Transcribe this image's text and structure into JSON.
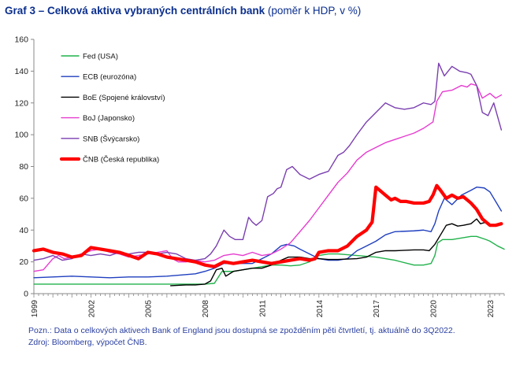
{
  "header": {
    "title_main": "Graf 3 – Celková aktiva vybraných centrálních bank",
    "title_units": "(poměr k HDP, v %)"
  },
  "footnotes": {
    "note": "Pozn.: Data o celkových aktivech Bank of England jsou dostupná se zpožděním pěti čtvrtletí, tj. aktuálně do 3Q2022.",
    "source": "Zdroj:  Bloomberg, výpočet ČNB."
  },
  "chart_data": {
    "type": "line",
    "title": "Graf 3 – Celková aktiva vybraných centrálních bank (poměr k HDP, v %)",
    "xlabel": "",
    "ylabel": "",
    "xlim": [
      1999,
      2023.75
    ],
    "ylim": [
      0,
      160
    ],
    "y_ticks": [
      0,
      20,
      40,
      60,
      80,
      100,
      120,
      140,
      160
    ],
    "x_ticks": [
      1999,
      2002,
      2005,
      2008,
      2011,
      2014,
      2017,
      2020,
      2023
    ],
    "x_tick_labels": [
      "1999",
      "2002",
      "2005",
      "2008",
      "2011",
      "2014",
      "2017",
      "2020",
      "2023"
    ],
    "grid": false,
    "legend_position": "top-left",
    "series": [
      {
        "name": "Fed (USA)",
        "color": "#21b24b",
        "width": 1.4,
        "x": [
          1999,
          2000,
          2001,
          2002,
          2003,
          2004,
          2005,
          2006,
          2007,
          2008,
          2008.5,
          2008.9,
          2009.5,
          2010,
          2010.5,
          2011,
          2011.5,
          2012,
          2012.5,
          2013,
          2013.5,
          2014,
          2014.5,
          2015,
          2016,
          2017,
          2018,
          2019,
          2019.5,
          2019.9,
          2020.1,
          2020.25,
          2020.5,
          2021,
          2021.5,
          2022,
          2022.3,
          2022.8,
          2023,
          2023.4,
          2023.75
        ],
        "y": [
          6,
          6,
          6,
          6,
          6,
          6,
          6,
          6,
          6,
          6,
          6.5,
          14,
          14,
          15,
          16,
          17,
          18,
          18,
          17.5,
          18,
          20,
          24,
          25,
          25,
          24,
          23,
          21,
          18,
          18,
          19,
          24,
          32,
          34,
          34,
          35,
          36,
          36,
          34,
          33,
          30,
          28
        ]
      },
      {
        "name": "ECB (eurozóna)",
        "color": "#1f3fbf",
        "width": 1.4,
        "x": [
          1999,
          2000,
          2001,
          2002,
          2003,
          2004,
          2005,
          2006,
          2007,
          2007.5,
          2008,
          2008.5,
          2009,
          2010,
          2010.5,
          2011,
          2011.5,
          2012,
          2012.3,
          2012.7,
          2013,
          2013.5,
          2014,
          2014.5,
          2015,
          2015.5,
          2016,
          2016.5,
          2017,
          2017.5,
          2018,
          2019,
          2019.5,
          2019.9,
          2020.1,
          2020.3,
          2020.6,
          2021,
          2021.5,
          2022,
          2022.3,
          2022.7,
          2023,
          2023.3,
          2023.6
        ],
        "y": [
          10,
          10.5,
          11,
          10.5,
          10,
          10.5,
          10.5,
          11,
          12,
          12.5,
          14,
          16,
          19,
          19,
          19,
          22,
          25,
          30,
          31,
          30,
          28,
          25,
          22,
          21,
          21,
          22,
          27,
          30,
          33,
          37,
          39,
          39.5,
          40,
          39,
          44,
          52,
          60,
          56,
          62,
          65,
          67,
          66.5,
          64,
          58,
          52
        ]
      },
      {
        "name": "BoE (Spojené království)",
        "color": "#000000",
        "width": 1.4,
        "x": [
          2006.2,
          2007,
          2007.5,
          2008,
          2008.3,
          2008.6,
          2008.9,
          2009.1,
          2009.5,
          2010,
          2010.5,
          2011,
          2011.5,
          2012,
          2012.4,
          2012.7,
          2013,
          2013.5,
          2014,
          2014.5,
          2015,
          2016,
          2016.5,
          2017,
          2017.5,
          2018,
          2019,
          2019.5,
          2019.8,
          2020.1,
          2020.4,
          2020.7,
          2021,
          2021.3,
          2021.6,
          2022,
          2022.3,
          2022.5,
          2022.8,
          2023.1
        ],
        "y": [
          5,
          5.5,
          5.5,
          6,
          8,
          15,
          16,
          11,
          14,
          15,
          16,
          16,
          18,
          21,
          23,
          23,
          23,
          22,
          22,
          21.5,
          21.5,
          22,
          23,
          26,
          27,
          27,
          27.5,
          27.5,
          27,
          31,
          37,
          43,
          44,
          42.5,
          43,
          44,
          47,
          44,
          45,
          43
        ]
      },
      {
        "name": "BoJ (Japonsko)",
        "color": "#e63ccf",
        "width": 1.4,
        "x": [
          1999,
          1999.5,
          2000,
          2000.3,
          2000.6,
          2001,
          2001.5,
          2002,
          2002.5,
          2003,
          2003.5,
          2004,
          2004.5,
          2005,
          2005.5,
          2006,
          2006.3,
          2006.6,
          2007,
          2007.5,
          2008,
          2008.5,
          2009,
          2009.5,
          2010,
          2010.5,
          2011,
          2011.5,
          2012,
          2012.5,
          2013,
          2013.5,
          2014,
          2014.5,
          2015,
          2015.5,
          2016,
          2016.5,
          2017,
          2017.5,
          2018,
          2018.5,
          2019,
          2019.5,
          2020,
          2020.2,
          2020.5,
          2021,
          2021.5,
          2021.8,
          2022,
          2022.3,
          2022.6,
          2023,
          2023.3,
          2023.6
        ],
        "y": [
          14,
          15,
          22,
          24,
          22,
          23,
          25,
          27,
          28,
          26,
          25,
          23,
          24,
          25,
          26,
          27,
          22,
          20,
          20,
          21,
          20,
          21,
          24,
          25,
          24,
          26,
          24,
          25,
          28,
          32,
          39,
          46,
          54,
          62,
          70,
          76,
          84,
          89,
          92,
          95,
          97,
          99,
          101,
          104,
          108,
          121,
          127,
          128,
          131,
          130,
          132,
          131,
          123,
          126,
          123,
          125
        ]
      },
      {
        "name": "SNB (Švýcarsko)",
        "color": "#7a3fb0",
        "width": 1.4,
        "x": [
          1999,
          1999.5,
          2000,
          2000.5,
          2001,
          2001.5,
          2002,
          2002.5,
          2003,
          2003.5,
          2004,
          2004.5,
          2005,
          2005.5,
          2006,
          2006.5,
          2007,
          2007.5,
          2008,
          2008.3,
          2008.6,
          2009,
          2009.3,
          2009.6,
          2010,
          2010.3,
          2010.5,
          2010.7,
          2011,
          2011.3,
          2011.6,
          2011.8,
          2012,
          2012.3,
          2012.6,
          2013,
          2013.5,
          2014,
          2014.5,
          2015,
          2015.3,
          2015.6,
          2016,
          2016.5,
          2017,
          2017.5,
          2018,
          2018.5,
          2019,
          2019.5,
          2019.9,
          2020.1,
          2020.3,
          2020.6,
          2021,
          2021.4,
          2021.8,
          2022,
          2022.3,
          2022.6,
          2022.9,
          2023.2,
          2023.6
        ],
        "y": [
          21,
          22,
          24,
          21,
          22,
          25,
          24,
          25,
          24,
          26,
          25,
          26,
          26,
          25,
          26,
          25,
          22,
          21,
          22,
          25,
          30,
          40,
          36,
          34,
          34,
          48,
          45,
          43,
          46,
          61,
          63,
          66,
          67,
          78,
          80,
          75,
          72,
          75,
          77,
          87,
          89,
          93,
          100,
          108,
          114,
          120,
          117,
          116,
          117,
          120,
          119,
          121,
          145,
          137,
          143,
          140,
          139,
          138,
          131,
          114,
          112,
          120,
          103
        ]
      },
      {
        "name": "ČNB (Česká republika)",
        "color": "#ff0000",
        "width": 4.2,
        "x": [
          1999,
          1999.5,
          2000,
          2000.5,
          2001,
          2001.5,
          2002,
          2002.5,
          2003,
          2003.5,
          2004,
          2004.5,
          2005,
          2005.5,
          2006,
          2006.5,
          2007,
          2007.5,
          2008,
          2008.5,
          2009,
          2009.5,
          2010,
          2010.5,
          2011,
          2011.5,
          2012,
          2012.5,
          2013,
          2013.5,
          2013.8,
          2014,
          2014.5,
          2015,
          2015.5,
          2016,
          2016.5,
          2016.8,
          2017,
          2017.2,
          2017.5,
          2017.8,
          2018,
          2018.3,
          2018.6,
          2019,
          2019.5,
          2019.8,
          2020,
          2020.2,
          2020.4,
          2020.7,
          2021,
          2021.3,
          2021.6,
          2022,
          2022.3,
          2022.6,
          2023,
          2023.3,
          2023.6
        ],
        "y": [
          27,
          28,
          26,
          25,
          23,
          24,
          29,
          28,
          27,
          26,
          24,
          22,
          26,
          25,
          23,
          22,
          21,
          20,
          18,
          17,
          20,
          19,
          20,
          21,
          20,
          19,
          20,
          21,
          22,
          21,
          22,
          26,
          27,
          27,
          30,
          36,
          40,
          45,
          67,
          65,
          62,
          59,
          60,
          58,
          58,
          57,
          57,
          58,
          62,
          68,
          65,
          60,
          62,
          60,
          61,
          57,
          53,
          47,
          43,
          43,
          44
        ]
      }
    ]
  }
}
